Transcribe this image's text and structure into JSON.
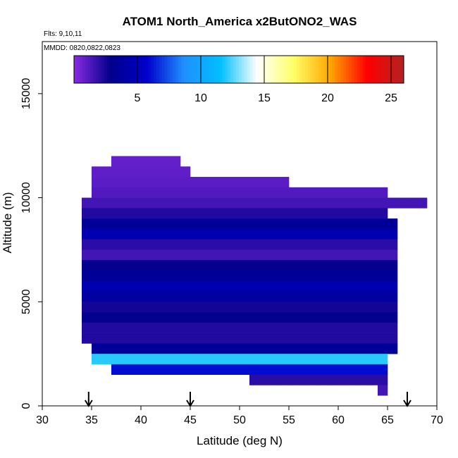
{
  "chart_data": {
    "type": "heatmap",
    "title": "ATOM1 North_America x2ButONO2_WAS",
    "flights_note": "Flts: 9,10,11",
    "dates_note": "MMDD: 0820,0822,0823",
    "xlabel": "Latitude (deg N)",
    "ylabel": "Altitude (m)",
    "xlim": [
      30,
      70
    ],
    "ylim": [
      0,
      17500
    ],
    "x_ticks": [
      "30",
      "35",
      "40",
      "45",
      "50",
      "55",
      "60",
      "65",
      "70"
    ],
    "y_ticks": [
      "0",
      "5000",
      "10000",
      "15000"
    ],
    "colorbar": {
      "range": [
        0,
        26
      ],
      "ticks": [
        "5",
        "10",
        "15",
        "20",
        "25"
      ],
      "colors": [
        "#8a2be2",
        "#00008b",
        "#0000cd",
        "#1e90ff",
        "#00bfff",
        "#ffffff",
        "#ffff66",
        "#ffa500",
        "#ff0000",
        "#b22222"
      ]
    },
    "bin_size": {
      "lat": 1,
      "alt": 500
    },
    "flight_markers_lat": [
      34.7,
      45,
      67
    ],
    "values_note": "mixing ratio values per 1 deg x 500 m bin",
    "bands": [
      {
        "alt": 11500,
        "lat": [
          37,
          44
        ],
        "value": 0.8
      },
      {
        "alt": 11000,
        "lat": [
          35,
          45
        ],
        "value": 0.9
      },
      {
        "alt": 10500,
        "lat": [
          35,
          55
        ],
        "value": 1.0
      },
      {
        "alt": 10000,
        "lat": [
          35,
          65
        ],
        "value": 1.2
      },
      {
        "alt": 9500,
        "lat": [
          34,
          69
        ],
        "value": 1.5
      },
      {
        "alt": 9000,
        "lat": [
          34,
          65
        ],
        "value": 2.2
      },
      {
        "alt": 8500,
        "lat": [
          34,
          66
        ],
        "value": 3.5
      },
      {
        "alt": 8000,
        "lat": [
          34,
          66
        ],
        "value": 4.5
      },
      {
        "alt": 7500,
        "lat": [
          34,
          66
        ],
        "value": 2.0
      },
      {
        "alt": 7000,
        "lat": [
          34,
          66
        ],
        "value": 1.5
      },
      {
        "alt": 6500,
        "lat": [
          34,
          66
        ],
        "value": 2.8
      },
      {
        "alt": 6000,
        "lat": [
          34,
          66
        ],
        "value": 3.5
      },
      {
        "alt": 5500,
        "lat": [
          34,
          66
        ],
        "value": 4.5
      },
      {
        "alt": 5000,
        "lat": [
          34,
          66
        ],
        "value": 3.8
      },
      {
        "alt": 4500,
        "lat": [
          34,
          66
        ],
        "value": 2.5
      },
      {
        "alt": 4000,
        "lat": [
          34,
          66
        ],
        "value": 2.8
      },
      {
        "alt": 3500,
        "lat": [
          34,
          66
        ],
        "value": 2.2
      },
      {
        "alt": 3000,
        "lat": [
          34,
          66
        ],
        "value": 2.2
      },
      {
        "alt": 2500,
        "lat": [
          35,
          66
        ],
        "value": 3.5
      },
      {
        "alt": 2000,
        "lat": [
          35,
          65
        ],
        "value": 12.0
      },
      {
        "alt": 1500,
        "lat": [
          37,
          65
        ],
        "value": 6.0
      },
      {
        "alt": 1000,
        "lat": [
          51,
          65
        ],
        "value": 2.0
      },
      {
        "alt": 500,
        "lat": [
          64,
          65
        ],
        "value": 1.5
      }
    ]
  }
}
